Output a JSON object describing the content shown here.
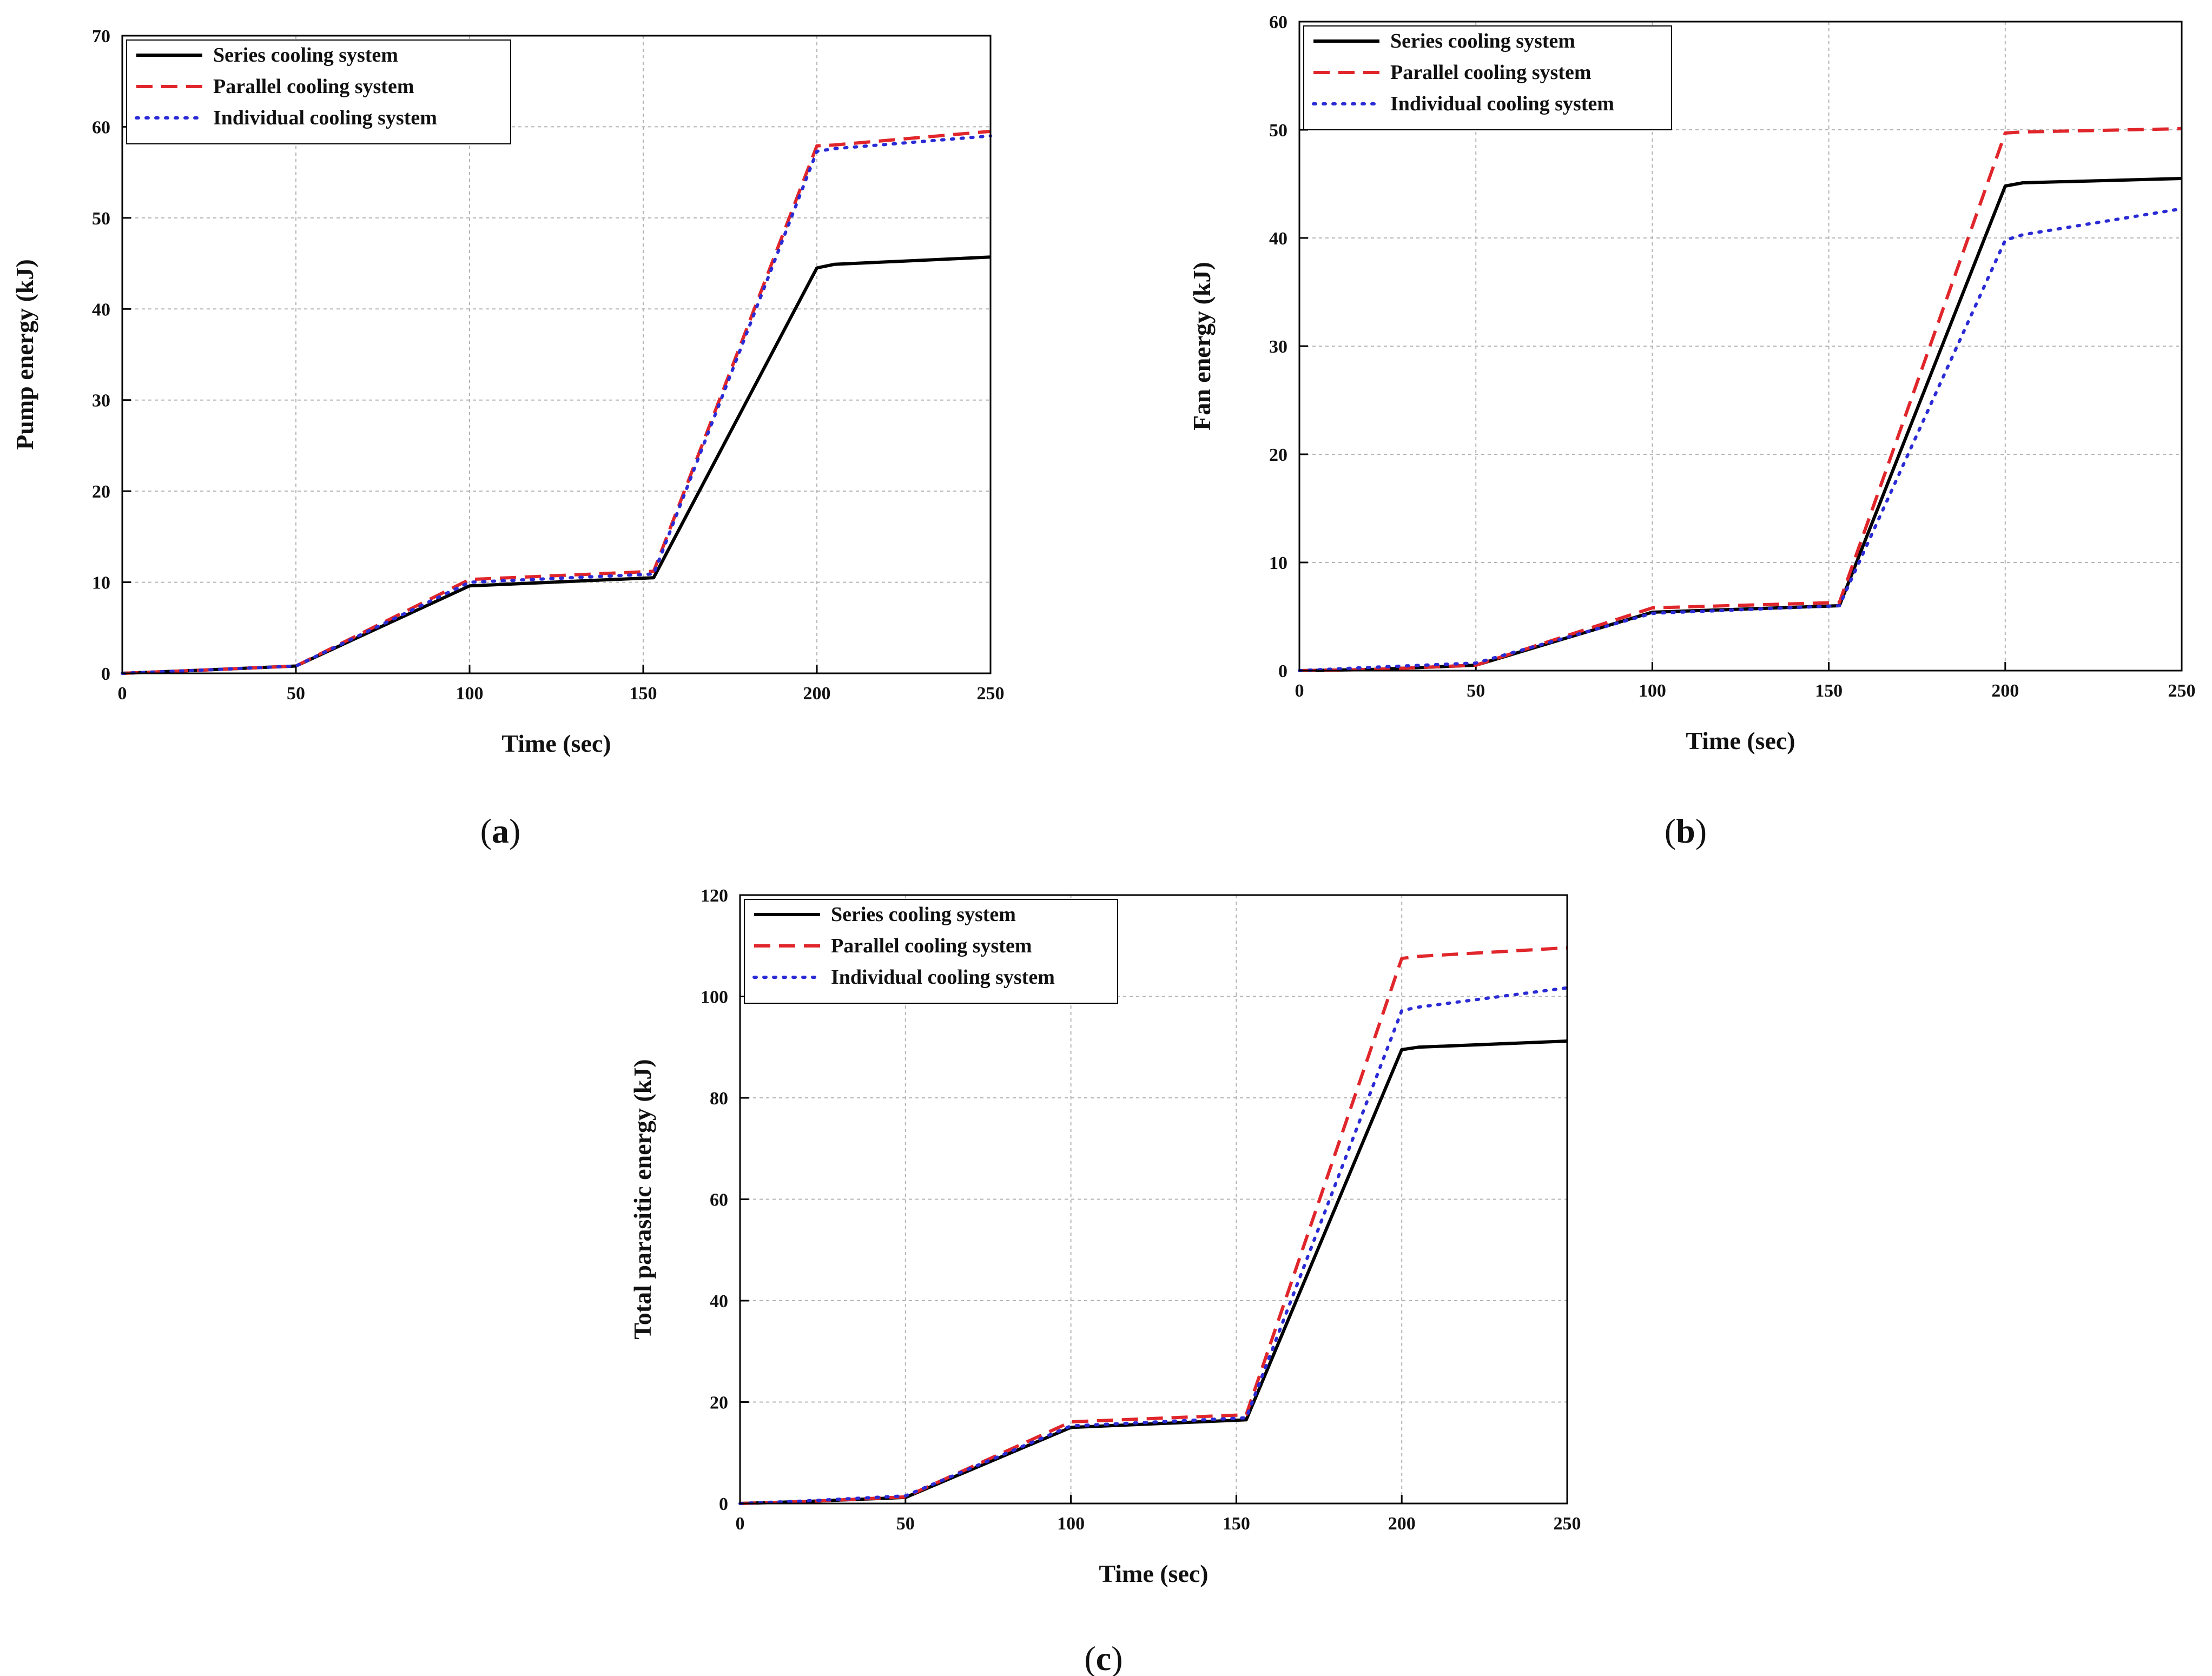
{
  "chart_data": [
    {
      "type": "line",
      "panel_label": "a",
      "title": "",
      "xlabel": "Time (sec)",
      "ylabel": "Pump energy (kJ)",
      "xlim": [
        0,
        250
      ],
      "ylim": [
        0,
        70
      ],
      "xticks": [
        0,
        50,
        100,
        150,
        200,
        250
      ],
      "yticks": [
        0,
        10,
        20,
        30,
        40,
        50,
        60,
        70
      ],
      "grid": true,
      "legend_position": "top-left",
      "series": [
        {
          "name": "Series cooling system",
          "color": "#000000",
          "style": "solid",
          "x": [
            0,
            20,
            50,
            100,
            153,
            200,
            205,
            250
          ],
          "y": [
            0,
            0.3,
            0.8,
            9.6,
            10.5,
            44.5,
            44.9,
            45.7
          ]
        },
        {
          "name": "Parallel cooling system",
          "color": "#e0262b",
          "style": "dashed",
          "x": [
            0,
            20,
            50,
            100,
            153,
            200,
            205,
            250
          ],
          "y": [
            0,
            0.3,
            0.8,
            10.3,
            11.2,
            57.9,
            58.0,
            59.5
          ]
        },
        {
          "name": "Individual cooling system",
          "color": "#2b2bd6",
          "style": "dotted",
          "x": [
            0,
            20,
            50,
            100,
            153,
            200,
            205,
            250
          ],
          "y": [
            0,
            0.3,
            0.8,
            10.0,
            10.9,
            57.3,
            57.6,
            59.0
          ]
        }
      ]
    },
    {
      "type": "line",
      "panel_label": "b",
      "title": "",
      "xlabel": "Time (sec)",
      "ylabel": "Fan energy (kJ)",
      "xlim": [
        0,
        250
      ],
      "ylim": [
        0,
        60
      ],
      "xticks": [
        0,
        50,
        100,
        150,
        200,
        250
      ],
      "yticks": [
        0,
        10,
        20,
        30,
        40,
        50,
        60
      ],
      "grid": true,
      "legend_position": "top-left",
      "series": [
        {
          "name": "Series cooling system",
          "color": "#000000",
          "style": "solid",
          "x": [
            0,
            20,
            50,
            100,
            153,
            200,
            205,
            250
          ],
          "y": [
            0,
            0.1,
            0.5,
            5.4,
            6.0,
            44.8,
            45.1,
            45.5
          ]
        },
        {
          "name": "Parallel cooling system",
          "color": "#e0262b",
          "style": "dashed",
          "x": [
            0,
            20,
            50,
            100,
            153,
            200,
            205,
            250
          ],
          "y": [
            0,
            0.1,
            0.5,
            5.8,
            6.3,
            49.7,
            49.8,
            50.1
          ]
        },
        {
          "name": "Individual cooling system",
          "color": "#2b2bd6",
          "style": "dotted",
          "x": [
            0,
            20,
            50,
            100,
            153,
            200,
            205,
            250
          ],
          "y": [
            0,
            0.3,
            0.7,
            5.3,
            6.0,
            39.8,
            40.3,
            42.7
          ]
        }
      ]
    },
    {
      "type": "line",
      "panel_label": "c",
      "title": "",
      "xlabel": "Time (sec)",
      "ylabel": "Total parasitic energy (kJ)",
      "xlim": [
        0,
        250
      ],
      "ylim": [
        0,
        120
      ],
      "xticks": [
        0,
        50,
        100,
        150,
        200,
        250
      ],
      "yticks": [
        0,
        20,
        40,
        60,
        80,
        100,
        120
      ],
      "grid": true,
      "legend_position": "top-left",
      "series": [
        {
          "name": "Series cooling system",
          "color": "#000000",
          "style": "solid",
          "x": [
            0,
            20,
            50,
            100,
            153,
            200,
            205,
            250
          ],
          "y": [
            0,
            0.4,
            1.2,
            15.0,
            16.5,
            89.5,
            90.0,
            91.2
          ]
        },
        {
          "name": "Parallel cooling system",
          "color": "#e0262b",
          "style": "dashed",
          "x": [
            0,
            20,
            50,
            100,
            153,
            200,
            205,
            250
          ],
          "y": [
            0,
            0.4,
            1.3,
            16.1,
            17.5,
            107.5,
            107.9,
            109.6
          ]
        },
        {
          "name": "Individual cooling system",
          "color": "#2b2bd6",
          "style": "dotted",
          "x": [
            0,
            20,
            50,
            100,
            153,
            200,
            205,
            250
          ],
          "y": [
            0,
            0.5,
            1.5,
            15.3,
            16.9,
            97.2,
            97.9,
            101.7
          ]
        }
      ]
    }
  ]
}
